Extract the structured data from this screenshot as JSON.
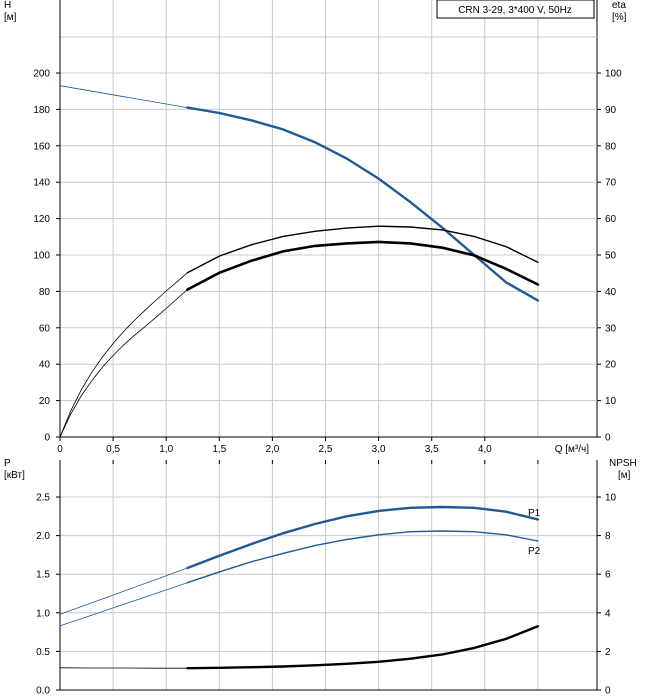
{
  "chart_data": [
    {
      "type": "line",
      "title": "CRN 3-29, 3*400 V, 50Hz",
      "xlabel": "Q [м³/ч]",
      "x_ticks": [
        "0",
        "0,5",
        "1,0",
        "1,5",
        "2,0",
        "2,5",
        "3,0",
        "3,5",
        "4,0"
      ],
      "xlim": [
        0,
        4.5
      ],
      "y_left": {
        "label_line1": "H",
        "label_line2": "[м]",
        "ticks": [
          "0",
          "20",
          "40",
          "60",
          "80",
          "100",
          "120",
          "140",
          "160",
          "180",
          "200"
        ],
        "ylim": [
          0,
          200
        ]
      },
      "y_right": {
        "label_line1": "eta",
        "label_line2": "[%]",
        "ticks": [
          "0",
          "10",
          "20",
          "30",
          "40",
          "50",
          "60",
          "70",
          "80",
          "90",
          "100"
        ],
        "ylim": [
          0,
          100
        ]
      },
      "grid": true,
      "series": [
        {
          "key": "H",
          "axis": "left",
          "color": "#1f5a96",
          "thin": {
            "x": [
              0,
              0.3,
              0.6,
              0.9,
              1.2
            ],
            "y": [
              193,
              190,
              187,
              184,
              181
            ]
          },
          "thick": {
            "x": [
              1.2,
              1.5,
              1.8,
              2.1,
              2.4,
              2.7,
              3.0,
              3.3,
              3.6,
              3.9,
              4.2,
              4.5
            ],
            "y": [
              181,
              178,
              174,
              169,
              162,
              153,
              142,
              129,
              115,
              100,
              85,
              75
            ]
          }
        },
        {
          "key": "eta_pump",
          "axis": "right",
          "color": "#000000",
          "thin": {
            "x": [
              0,
              0.1,
              0.2,
              0.3,
              0.4,
              0.5,
              0.6,
              0.7,
              0.8,
              0.9,
              1.0,
              1.1,
              1.2
            ],
            "y": [
              0,
              6.2,
              11.3,
              15.5,
              19.2,
              22.4,
              25.3,
              27.9,
              30.3,
              32.8,
              35.3,
              37.9,
              40.5
            ]
          },
          "thick": {
            "x": [
              1.2,
              1.5,
              1.8,
              2.1,
              2.4,
              2.7,
              3.0,
              3.3,
              3.6,
              3.9,
              4.2,
              4.5
            ],
            "y": [
              40.5,
              45.1,
              48.4,
              51.0,
              52.5,
              53.2,
              53.6,
              53.2,
              52.0,
              49.9,
              46.2,
              41.9
            ]
          }
        },
        {
          "key": "eta_total",
          "axis": "right",
          "color": "#000000",
          "thin": {
            "x": [
              0,
              0.1,
              0.2,
              0.3,
              0.4,
              0.5,
              0.6,
              0.7,
              0.8,
              0.9,
              1.0,
              1.1,
              1.2
            ],
            "y": [
              0,
              7.1,
              12.9,
              17.8,
              22.0,
              25.7,
              29.0,
              32.0,
              34.8,
              37.5,
              40.1,
              42.6,
              45.1
            ]
          },
          "thick": {
            "x": [
              1.2,
              1.5,
              1.8,
              2.1,
              2.4,
              2.7,
              3.0,
              3.3,
              3.6,
              3.9,
              4.2,
              4.5
            ],
            "y": [
              45.1,
              49.7,
              52.8,
              55.1,
              56.5,
              57.4,
              57.9,
              57.7,
              56.9,
              55.1,
              52.3,
              48.0
            ]
          }
        }
      ]
    },
    {
      "type": "line",
      "xlim": [
        0,
        4.5
      ],
      "y_left": {
        "label_line1": "P",
        "label_line2": "[кВт]",
        "ticks": [
          "0.0",
          "0.5",
          "1.0",
          "1.5",
          "2.0",
          "2.5"
        ],
        "ylim": [
          0,
          2.5
        ]
      },
      "y_right": {
        "label_line1": "NPSH",
        "label_line2": "[м]",
        "ticks": [
          "0",
          "2",
          "4",
          "6",
          "8",
          "10"
        ],
        "ylim": [
          0,
          10
        ]
      },
      "grid": true,
      "series": [
        {
          "name": "P1",
          "axis": "left",
          "color": "#1f5a96",
          "thin": {
            "x": [
              0,
              0.3,
              0.6,
              0.9,
              1.2
            ],
            "y": [
              0.98,
              1.13,
              1.28,
              1.43,
              1.58
            ]
          },
          "thick": {
            "x": [
              1.2,
              1.5,
              1.8,
              2.1,
              2.4,
              2.7,
              3.0,
              3.3,
              3.6,
              3.9,
              4.2,
              4.5
            ],
            "y": [
              1.58,
              1.74,
              1.89,
              2.03,
              2.15,
              2.25,
              2.32,
              2.36,
              2.37,
              2.36,
              2.31,
              2.21
            ]
          }
        },
        {
          "name": "P2",
          "axis": "left",
          "color": "#1f5a96",
          "thin": {
            "x": [
              0,
              0.3,
              0.6,
              0.9,
              1.2
            ],
            "y": [
              0.83,
              0.97,
              1.11,
              1.25,
              1.39
            ]
          },
          "thick": {
            "x": [
              1.2,
              1.5,
              1.8,
              2.1,
              2.4,
              2.7,
              3.0,
              3.3,
              3.6,
              3.9,
              4.2,
              4.5
            ],
            "y": [
              1.39,
              1.53,
              1.66,
              1.77,
              1.87,
              1.95,
              2.01,
              2.05,
              2.06,
              2.05,
              2.01,
              1.93
            ]
          }
        },
        {
          "key": "NPSH",
          "axis": "right",
          "color": "#000000",
          "thin": {
            "x": [
              0,
              0.3,
              0.6,
              0.9,
              1.2
            ],
            "y": [
              1.15,
              1.14,
              1.14,
              1.13,
              1.13
            ]
          },
          "thick": {
            "x": [
              1.2,
              1.5,
              1.8,
              2.1,
              2.4,
              2.7,
              3.0,
              3.3,
              3.6,
              3.9,
              4.2,
              4.5
            ],
            "y": [
              1.13,
              1.15,
              1.18,
              1.22,
              1.28,
              1.36,
              1.46,
              1.62,
              1.84,
              2.18,
              2.65,
              3.3
            ]
          }
        }
      ]
    }
  ]
}
